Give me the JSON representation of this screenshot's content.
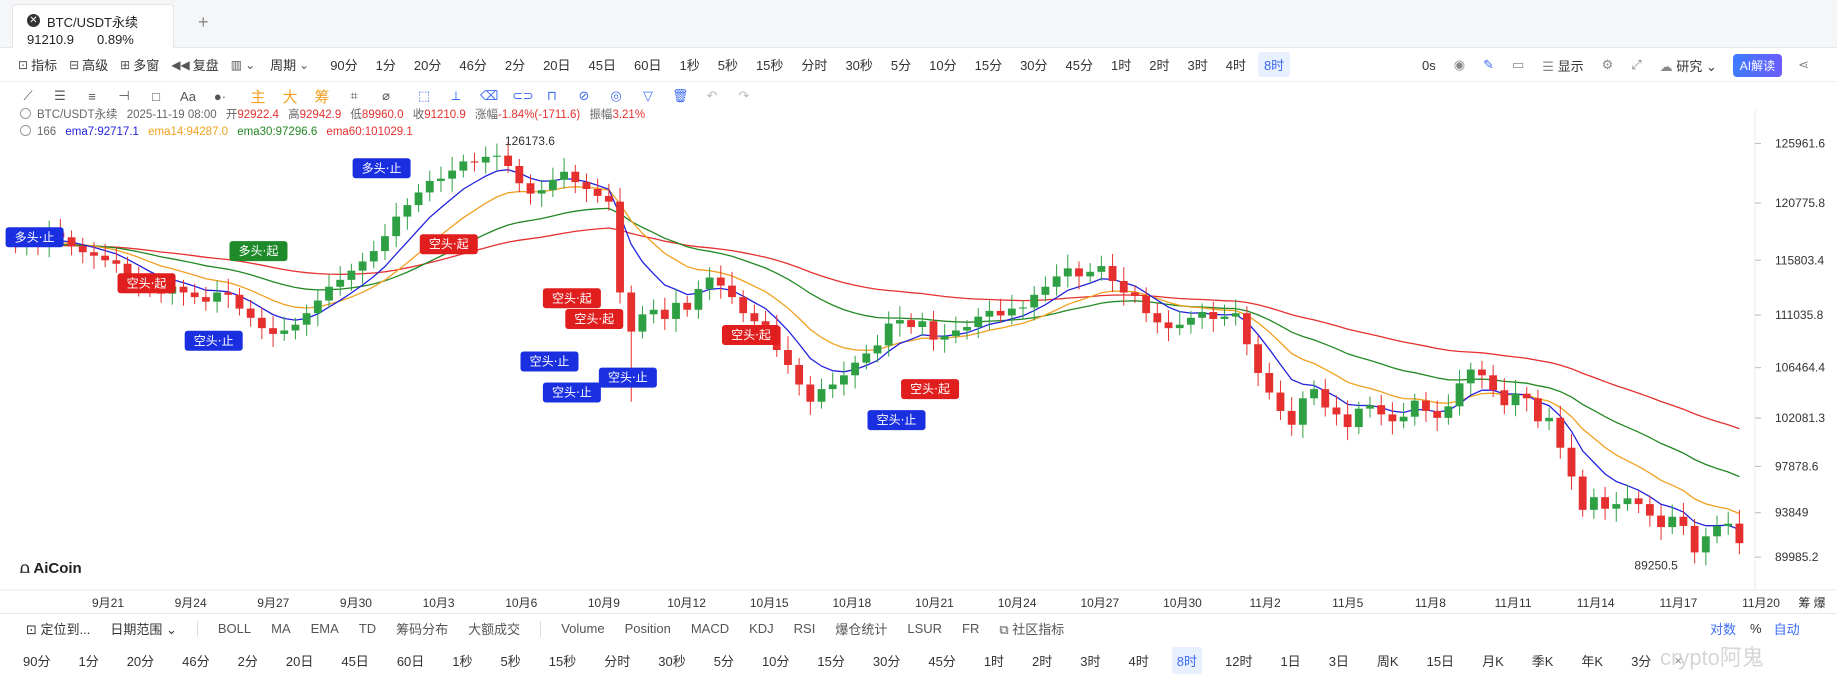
{
  "tab": {
    "title": "BTC/USDT永续",
    "price": "91210.9",
    "change": "0.89%",
    "add": "+"
  },
  "toolbar": {
    "indicators": "指标",
    "advanced": "高级",
    "multi_window": "多窗",
    "replay": "复盘",
    "period_label": "周期",
    "periods": [
      "90分",
      "1分",
      "20分",
      "46分",
      "2分",
      "20日",
      "45日",
      "60日",
      "1秒",
      "5秒",
      "15秒",
      "分时",
      "30秒",
      "5分",
      "10分",
      "15分",
      "30分",
      "45分",
      "1时",
      "2时",
      "3时",
      "4时",
      "8时"
    ],
    "active_period": "8时",
    "seconds": "0s",
    "display": "显示",
    "research": "研究",
    "ai": "AI解读"
  },
  "drawing_tools": {
    "main": "主",
    "big": "大",
    "chips": "筹"
  },
  "legend": {
    "symbol": "BTC/USDT永续",
    "datetime": "2025-11-19 08:00",
    "open_label": "开",
    "open": "92922.4",
    "high_label": "高",
    "high": "92942.9",
    "low_label": "低",
    "low": "89960.0",
    "close_label": "收",
    "close": "91210.9",
    "change_label": "涨幅",
    "change": "-1.84%(-1711.6)",
    "amp_label": "振幅",
    "amp": "3.21%",
    "count": "166",
    "ema7": "ema7:92717.1",
    "ema14": "ema14:94287.0",
    "ema30": "ema30:97296.6",
    "ema60": "ema60:101029.1"
  },
  "chart_data": {
    "type": "candlestick",
    "title": "",
    "yticks": [
      125961.6,
      120775.8,
      115803.4,
      111035.8,
      106464.4,
      102081.3,
      97878.6,
      93849.0,
      89985.2
    ],
    "ylim": [
      88000,
      128000
    ],
    "xticks": [
      "9月21",
      "9月24",
      "9月27",
      "9月30",
      "10月3",
      "10月6",
      "10月9",
      "10月12",
      "10月15",
      "10月18",
      "10月21",
      "10月24",
      "10月27",
      "10月30",
      "11月2",
      "11月5",
      "11月8",
      "11月11",
      "11月14",
      "11月17",
      "11月20"
    ],
    "high_marker": "126173.6",
    "low_marker": "89250.5",
    "signals": [
      {
        "label": "多头·止",
        "type": "long_stop",
        "date_index": 0,
        "price": 117800
      },
      {
        "label": "空头·起",
        "type": "short_start",
        "date_index": 10,
        "price": 113800
      },
      {
        "label": "空头·止",
        "type": "short_stop",
        "date_index": 16,
        "price": 108800
      },
      {
        "label": "多头·起",
        "type": "long_start",
        "date_index": 20,
        "price": 116600
      },
      {
        "label": "多头·止",
        "type": "long_stop",
        "date_index": 31,
        "price": 123800
      },
      {
        "label": "空头·起",
        "type": "short_start",
        "date_index": 37,
        "price": 117200
      },
      {
        "label": "空头·起",
        "type": "short_start",
        "date_index": 48,
        "price": 112500
      },
      {
        "label": "空头·止",
        "type": "short_stop",
        "date_index": 46,
        "price": 107000
      },
      {
        "label": "空头·起",
        "type": "short_start",
        "date_index": 50,
        "price": 110700
      },
      {
        "label": "空头·止",
        "type": "short_stop",
        "date_index": 48,
        "price": 104300
      },
      {
        "label": "空头·止",
        "type": "short_stop",
        "date_index": 53,
        "price": 105600
      },
      {
        "label": "空头·起",
        "type": "short_start",
        "date_index": 64,
        "price": 109300
      },
      {
        "label": "空头·止",
        "type": "short_stop",
        "date_index": 77,
        "price": 101900
      },
      {
        "label": "空头·起",
        "type": "short_start",
        "date_index": 80,
        "price": 104600
      }
    ],
    "close": [
      117000,
      117500,
      117200,
      118200,
      117800,
      117000,
      116500,
      116200,
      115800,
      115500,
      114500,
      113800,
      113200,
      112900,
      113500,
      113000,
      112600,
      112200,
      113000,
      112800,
      111600,
      110800,
      109900,
      109400,
      109700,
      110200,
      111200,
      112300,
      113500,
      114100,
      114900,
      115700,
      116600,
      117900,
      119600,
      120600,
      121700,
      122700,
      122900,
      123600,
      124400,
      124300,
      124800,
      124900,
      124000,
      122500,
      121600,
      121900,
      122800,
      123500,
      122600,
      122000,
      121400,
      120900,
      113000,
      109600,
      111100,
      111500,
      110700,
      112100,
      111500,
      113300,
      114300,
      113600,
      112600,
      111200,
      110500,
      110000,
      108000,
      106700,
      105000,
      103500,
      104600,
      105000,
      105800,
      106900,
      107700,
      108400,
      110300,
      110600,
      110000,
      110500,
      108900,
      109200,
      109700,
      110000,
      110900,
      111400,
      111000,
      111600,
      111700,
      112800,
      113500,
      114400,
      115100,
      114400,
      114800,
      115300,
      114000,
      113000,
      112700,
      111200,
      110400,
      109900,
      110200,
      110800,
      111300,
      110700,
      110900,
      111200,
      108500,
      106000,
      104300,
      102700,
      101500,
      103800,
      104600,
      103000,
      102400,
      101300,
      102900,
      103200,
      102400,
      101800,
      102200,
      103600,
      102700,
      102100,
      103100,
      105100,
      106300,
      105800,
      104500,
      103200,
      104200,
      103800,
      101800,
      102100,
      99500,
      97000,
      94100,
      95200,
      94200,
      94600,
      95100,
      94600,
      93600,
      92600,
      93500,
      92700,
      90400,
      91800,
      92700,
      92900,
      91200
    ],
    "open": [
      117500,
      117000,
      117500,
      117200,
      118200,
      117800,
      117000,
      116500,
      116200,
      115800,
      115500,
      114500,
      113800,
      113200,
      112900,
      113500,
      113000,
      112600,
      112200,
      113000,
      112800,
      111600,
      110800,
      109900,
      109400,
      109700,
      110200,
      111200,
      112300,
      113500,
      114100,
      114900,
      115700,
      116600,
      117900,
      119600,
      120600,
      121700,
      122700,
      122900,
      123600,
      124400,
      124300,
      124800,
      124900,
      124000,
      122500,
      121600,
      121900,
      122800,
      123500,
      122600,
      122000,
      121400,
      120900,
      113000,
      109600,
      111100,
      111500,
      110700,
      112100,
      111500,
      113300,
      114300,
      113600,
      112600,
      111200,
      110500,
      110000,
      108000,
      106700,
      105000,
      103500,
      104600,
      105000,
      105800,
      106900,
      107700,
      108400,
      110300,
      110600,
      110000,
      110500,
      108900,
      109200,
      109700,
      110000,
      110900,
      111400,
      111000,
      111600,
      111700,
      112800,
      113500,
      114400,
      115100,
      114400,
      114800,
      115300,
      114000,
      113000,
      112700,
      111200,
      110400,
      109900,
      110200,
      110800,
      111300,
      110700,
      110900,
      111200,
      108500,
      106000,
      104300,
      102700,
      101500,
      103800,
      104600,
      103000,
      102400,
      101300,
      102900,
      103200,
      102400,
      101800,
      102200,
      103600,
      102700,
      102100,
      103100,
      105100,
      106300,
      105800,
      104500,
      103200,
      104200,
      103800,
      101800,
      102100,
      99500,
      97000,
      94100,
      95200,
      94200,
      94600,
      95100,
      94600,
      93600,
      92600,
      93500,
      92700,
      90400,
      91800,
      92700,
      92900
    ]
  },
  "bottom": {
    "locate": "定位到...",
    "date_range": "日期范围",
    "indicators": [
      "BOLL",
      "MA",
      "EMA",
      "TD",
      "筹码分布",
      "大额成交"
    ],
    "sub_indicators": [
      "Volume",
      "Position",
      "MACD",
      "KDJ",
      "RSI",
      "爆仓统计",
      "LSUR",
      "FR"
    ],
    "community": "社区指标",
    "log": "对数",
    "pct": "%",
    "auto": "自动",
    "periods": [
      "90分",
      "1分",
      "20分",
      "46分",
      "2分",
      "20日",
      "45日",
      "60日",
      "1秒",
      "5秒",
      "15秒",
      "分时",
      "30秒",
      "5分",
      "10分",
      "15分",
      "30分",
      "45分",
      "1时",
      "2时",
      "3时",
      "4时",
      "8时",
      "12时",
      "1日",
      "3日",
      "周K",
      "15日",
      "月K",
      "季K",
      "年K",
      "3分"
    ],
    "active_period": "8时",
    "close_x": "×",
    "watermark": "crypto阿鬼",
    "logo": "AiCoin",
    "right_labels": "筹 爆"
  }
}
